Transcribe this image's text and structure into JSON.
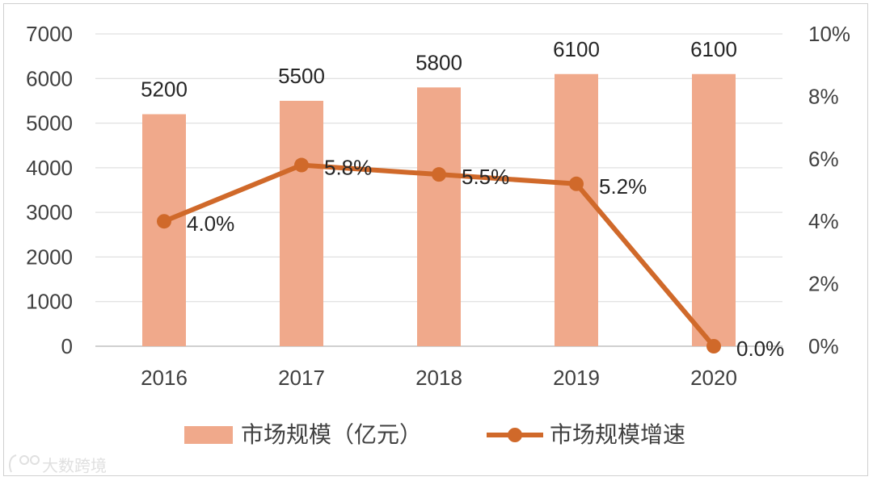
{
  "chart_data": {
    "type": "bar",
    "categories": [
      "2016",
      "2017",
      "2018",
      "2019",
      "2020"
    ],
    "series": [
      {
        "name": "市场规模（亿元）",
        "type": "bar",
        "axis": "left",
        "values": [
          5200,
          5500,
          5800,
          6100,
          6100
        ],
        "labels": [
          "5200",
          "5500",
          "5800",
          "6100",
          "6100"
        ],
        "color": "#f0a98b"
      },
      {
        "name": "市场规模增速",
        "type": "line",
        "axis": "right",
        "values": [
          4.0,
          5.8,
          5.5,
          5.2,
          0.0
        ],
        "labels": [
          "4.0%",
          "5.8%",
          "5.5%",
          "5.2%",
          "0.0%"
        ],
        "color": "#d0692a"
      }
    ],
    "y_left": {
      "ylim": [
        0,
        7000
      ],
      "ticks": [
        "0",
        "1000",
        "2000",
        "3000",
        "4000",
        "5000",
        "6000",
        "7000"
      ]
    },
    "y_right": {
      "ylim": [
        0,
        10
      ],
      "ticks": [
        "0%",
        "2%",
        "4%",
        "6%",
        "8%",
        "10%"
      ]
    },
    "grid": true,
    "legend_position": "bottom"
  },
  "watermark": {
    "text": "大数跨境"
  }
}
